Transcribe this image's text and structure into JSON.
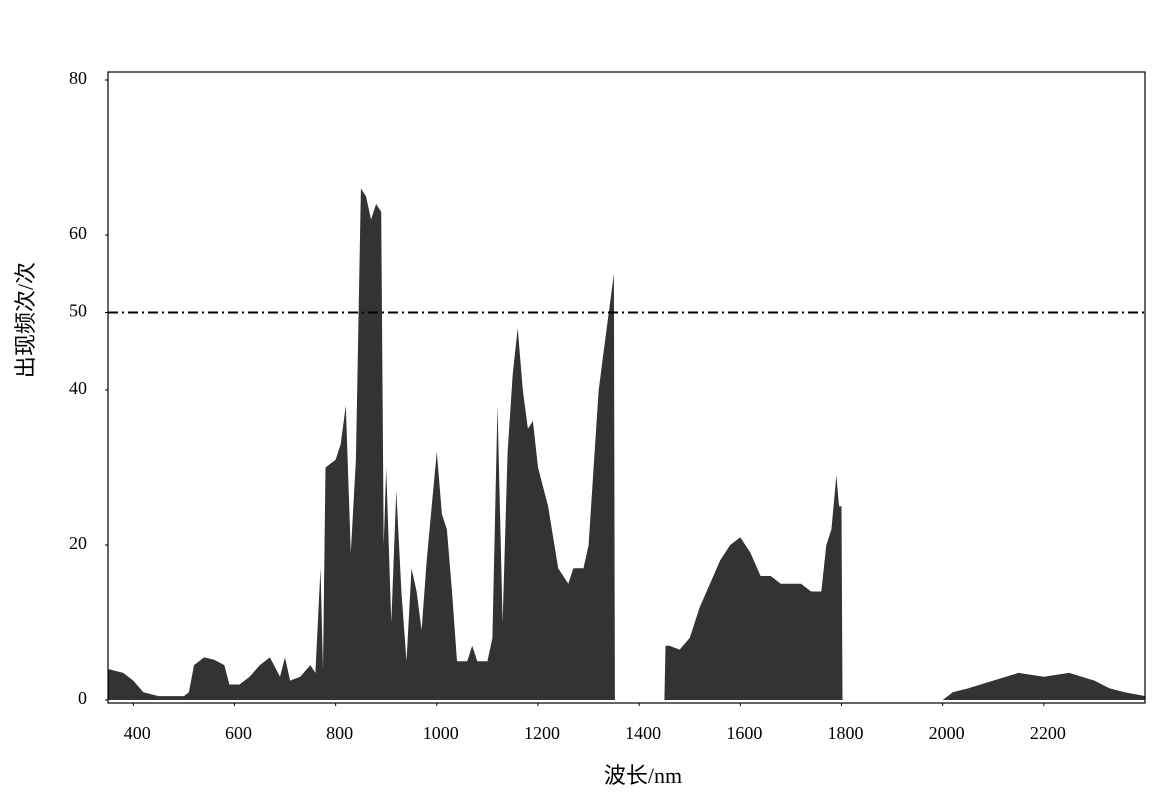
{
  "chart_data": {
    "type": "area",
    "x_label": "波长/nm",
    "y_label": "出现频次/次",
    "x": [
      350,
      380,
      400,
      420,
      450,
      500,
      510,
      520,
      540,
      560,
      580,
      590,
      610,
      630,
      650,
      670,
      690,
      700,
      710,
      730,
      750,
      760,
      770,
      775,
      780,
      800,
      810,
      820,
      830,
      840,
      850,
      860,
      870,
      880,
      890,
      895,
      900,
      910,
      920,
      930,
      940,
      950,
      960,
      970,
      980,
      990,
      1000,
      1010,
      1020,
      1030,
      1040,
      1060,
      1070,
      1080,
      1100,
      1110,
      1120,
      1130,
      1140,
      1150,
      1160,
      1170,
      1180,
      1190,
      1200,
      1220,
      1240,
      1260,
      1270,
      1290,
      1300,
      1310,
      1320,
      1330,
      1340,
      1350,
      1352,
      1400,
      1450,
      1452,
      1460,
      1480,
      1500,
      1520,
      1540,
      1560,
      1580,
      1600,
      1620,
      1640,
      1660,
      1680,
      1700,
      1720,
      1740,
      1760,
      1770,
      1780,
      1790,
      1795,
      1800,
      1802,
      1900,
      2000,
      2020,
      2050,
      2100,
      2150,
      2200,
      2250,
      2300,
      2330,
      2360,
      2400
    ],
    "series": [
      {
        "color": "#333333",
        "values": [
          4,
          3.5,
          2.5,
          1,
          0.5,
          0.5,
          1,
          4.5,
          5.5,
          5.2,
          4.5,
          2,
          2,
          3,
          4.5,
          5.5,
          3,
          5.5,
          2.5,
          3,
          4.5,
          3.5,
          17,
          4,
          30,
          31,
          33,
          38,
          19,
          31,
          66,
          65,
          62,
          64,
          63,
          20,
          30,
          10,
          27,
          14,
          5,
          17,
          14,
          9,
          18,
          25,
          32,
          24,
          22,
          14,
          5,
          5,
          7,
          5,
          5,
          8,
          38,
          10,
          32,
          42,
          48,
          40,
          35,
          36,
          30,
          25,
          17,
          15,
          17,
          17,
          20,
          30,
          40,
          45,
          50,
          55,
          0,
          0,
          0,
          7,
          7,
          6.5,
          8,
          12,
          15,
          18,
          20,
          21,
          19,
          16,
          16,
          15,
          15,
          15,
          14,
          14,
          20,
          22,
          29,
          25,
          25,
          0,
          0,
          0,
          1,
          1.5,
          2.5,
          3.5,
          3,
          3.5,
          2.5,
          1.5,
          1,
          0.5
        ]
      }
    ],
    "threshold": 50,
    "xlim": [
      350,
      2400
    ],
    "xticks": [
      400,
      600,
      800,
      1000,
      1200,
      1400,
      1600,
      1800,
      2000,
      2200
    ],
    "ylim": [
      0,
      80
    ],
    "yticks": [
      0,
      20,
      40,
      50,
      60,
      80
    ]
  }
}
